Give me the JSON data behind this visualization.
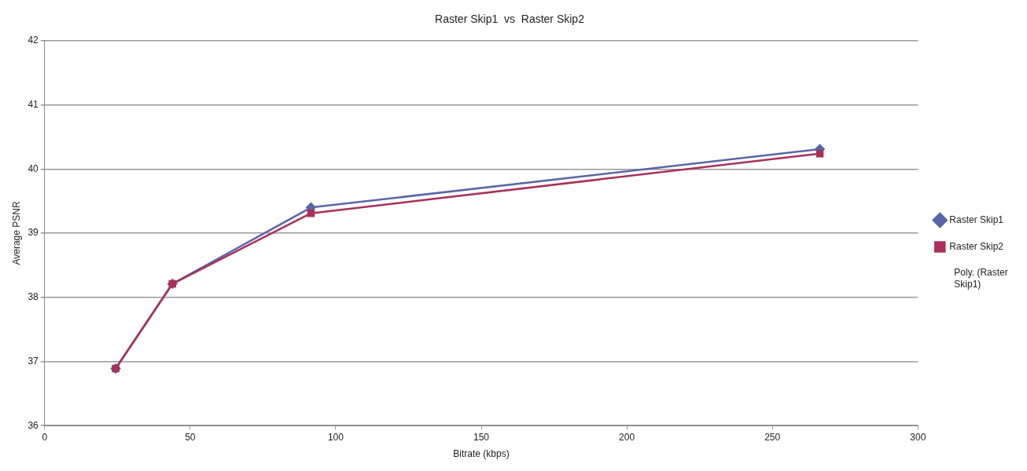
{
  "chart_data": {
    "type": "line",
    "title": "Raster Skip1  vs  Raster Skip2",
    "xlabel": "Bitrate (kbps)",
    "ylabel": "Average PSNR",
    "xlim": [
      0,
      300
    ],
    "xticks": [
      0,
      50,
      100,
      150,
      200,
      250,
      300
    ],
    "ylim": [
      36,
      42
    ],
    "yticks": [
      36,
      37,
      38,
      39,
      40,
      41,
      42
    ],
    "grid": "y",
    "legend": "right",
    "annotations": [
      "Poly. (Raster Skip1)"
    ],
    "series": [
      {
        "name": "Raster Skip1",
        "color": "#5a65a8",
        "marker": "diamond",
        "x": [
          24.4,
          43.9,
          91.5,
          266.3
        ],
        "values": [
          36.89,
          38.21,
          39.4,
          40.31
        ]
      },
      {
        "name": "Raster Skip2",
        "color": "#a8305a",
        "marker": "square",
        "x": [
          24.4,
          43.9,
          91.5,
          266.3
        ],
        "values": [
          36.89,
          38.21,
          39.31,
          40.24
        ]
      }
    ]
  }
}
